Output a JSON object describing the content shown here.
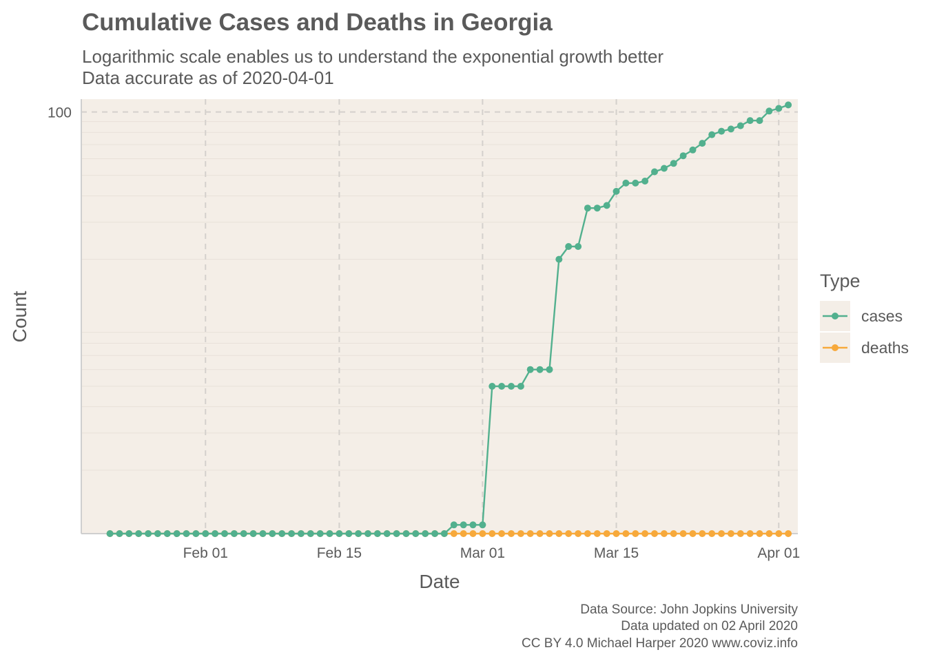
{
  "chart_data": {
    "type": "line",
    "title": "Cumulative Cases and Deaths in Georgia",
    "subtitle": [
      "Logarithmic scale enables us to understand the exponential growth better",
      "Data accurate as of 2020-04-01"
    ],
    "xlabel": "Date",
    "ylabel": "Count",
    "y_scale": "log",
    "ylim": [
      1,
      115
    ],
    "xlim": [
      "2020-01-19",
      "2020-04-03"
    ],
    "x_ticks": [
      {
        "date": "2020-02-01",
        "label": "Feb 01"
      },
      {
        "date": "2020-02-15",
        "label": "Feb 15"
      },
      {
        "date": "2020-03-01",
        "label": "Mar 01"
      },
      {
        "date": "2020-03-15",
        "label": "Mar 15"
      },
      {
        "date": "2020-04-01",
        "label": "Apr 01"
      }
    ],
    "y_ticks": [
      {
        "value": 100,
        "label": "100"
      }
    ],
    "grid": true,
    "legend": {
      "title": "Type",
      "position": "right"
    },
    "x_start": "2020-01-22",
    "x_step_days": 1,
    "series": [
      {
        "name": "cases",
        "color": "#52b08e",
        "values": [
          0,
          0,
          0,
          0,
          0,
          0,
          0,
          0,
          0,
          0,
          0,
          0,
          0,
          0,
          0,
          0,
          0,
          0,
          0,
          0,
          0,
          0,
          0,
          0,
          0,
          0,
          0,
          0,
          0,
          0,
          0,
          0,
          0,
          0,
          0,
          0,
          1.1,
          1.1,
          1.1,
          1.1,
          5,
          5,
          5,
          5,
          6,
          6,
          6,
          20,
          23,
          23,
          35,
          35,
          36,
          42,
          46,
          46,
          47,
          52,
          54,
          57,
          62,
          66,
          71,
          78,
          81,
          83,
          86,
          91,
          91,
          101,
          104,
          108
        ]
      },
      {
        "name": "deaths",
        "color": "#f7a93b",
        "values": [
          0,
          0,
          0,
          0,
          0,
          0,
          0,
          0,
          0,
          0,
          0,
          0,
          0,
          0,
          0,
          0,
          0,
          0,
          0,
          0,
          0,
          0,
          0,
          0,
          0,
          0,
          0,
          0,
          0,
          0,
          0,
          0,
          0,
          0,
          0,
          0,
          0,
          0,
          0,
          0,
          0,
          0,
          0,
          0,
          0,
          0,
          0,
          0,
          0,
          0,
          0,
          0,
          0,
          0,
          0,
          0,
          0,
          0,
          0,
          0,
          0,
          0,
          0,
          0,
          0,
          0,
          0,
          0,
          0,
          0,
          0,
          0
        ]
      }
    ]
  },
  "caption": [
    "Data Source: John Jopkins University",
    "Data updated on 02 April 2020",
    "CC BY 4.0 Michael Harper 2020 www.coviz.info"
  ]
}
